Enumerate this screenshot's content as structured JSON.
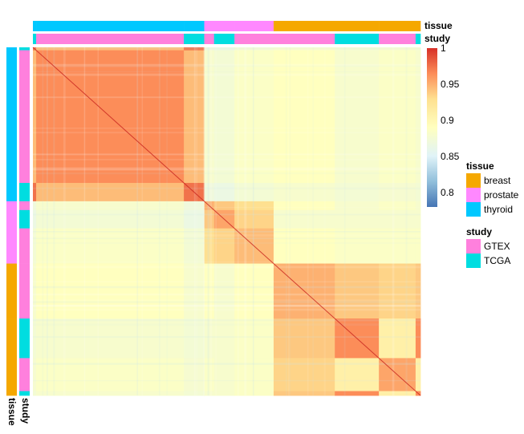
{
  "chart_data": {
    "type": "heatmap",
    "title": "",
    "xlabel": "",
    "ylabel": "",
    "annotation_tracks": [
      {
        "name": "tissue",
        "label": "tissue"
      },
      {
        "name": "study",
        "label": "study"
      }
    ],
    "samples_order": [
      {
        "tissue": "thyroid",
        "study": "TCGA",
        "n": 4
      },
      {
        "tissue": "thyroid",
        "study": "GTEX",
        "n": 181
      },
      {
        "tissue": "thyroid",
        "study": "TCGA",
        "n": 25
      },
      {
        "tissue": "prostate",
        "study": "GTEX",
        "n": 12
      },
      {
        "tissue": "prostate",
        "study": "TCGA",
        "n": 25
      },
      {
        "tissue": "prostate",
        "study": "GTEX",
        "n": 48
      },
      {
        "tissue": "breast",
        "study": "GTEX",
        "n": 75
      },
      {
        "tissue": "breast",
        "study": "TCGA",
        "n": 54
      },
      {
        "tissue": "breast",
        "study": "GTEX",
        "n": 45
      },
      {
        "tissue": "breast",
        "study": "TCGA",
        "n": 6
      }
    ],
    "block_correlation": {
      "groups": [
        "thyroid-GTEX",
        "thyroid-TCGA",
        "prostate-GTEX-a",
        "prostate-TCGA",
        "prostate-GTEX-b",
        "breast-GTEX-a",
        "breast-TCGA-a",
        "breast-GTEX-b"
      ],
      "values": [
        [
          0.965,
          0.945,
          0.88,
          0.875,
          0.885,
          0.89,
          0.88,
          0.885
        ],
        [
          0.945,
          0.975,
          0.87,
          0.865,
          0.875,
          0.88,
          0.875,
          0.878
        ],
        [
          0.88,
          0.87,
          0.95,
          0.94,
          0.93,
          0.89,
          0.88,
          0.885
        ],
        [
          0.875,
          0.865,
          0.94,
          0.955,
          0.935,
          0.88,
          0.88,
          0.88
        ],
        [
          0.885,
          0.875,
          0.93,
          0.935,
          0.945,
          0.89,
          0.885,
          0.885
        ],
        [
          0.89,
          0.88,
          0.89,
          0.88,
          0.89,
          0.95,
          0.94,
          0.935
        ],
        [
          0.88,
          0.875,
          0.88,
          0.88,
          0.885,
          0.94,
          0.965,
          0.91
        ],
        [
          0.885,
          0.878,
          0.885,
          0.88,
          0.885,
          0.935,
          0.91,
          0.955
        ]
      ]
    },
    "colorbar": {
      "range": [
        0.78,
        1.0
      ],
      "ticks": [
        "1",
        "0.95",
        "0.9",
        "0.85",
        "0.8"
      ],
      "tick_values": [
        1.0,
        0.95,
        0.9,
        0.85,
        0.8
      ],
      "colors": [
        "#4575b4",
        "#e0f3f8",
        "#ffffbf",
        "#fee090",
        "#fc8d59",
        "#d73027"
      ]
    },
    "legend": {
      "tissue": {
        "title": "tissue",
        "items": [
          {
            "label": "breast",
            "color": "#f5a800"
          },
          {
            "label": "prostate",
            "color": "#ff88ff"
          },
          {
            "label": "thyroid",
            "color": "#00c8ff"
          }
        ]
      },
      "study": {
        "title": "study",
        "items": [
          {
            "label": "GTEX",
            "color": "#ff80dd"
          },
          {
            "label": "TCGA",
            "color": "#00dde0"
          }
        ]
      }
    }
  }
}
